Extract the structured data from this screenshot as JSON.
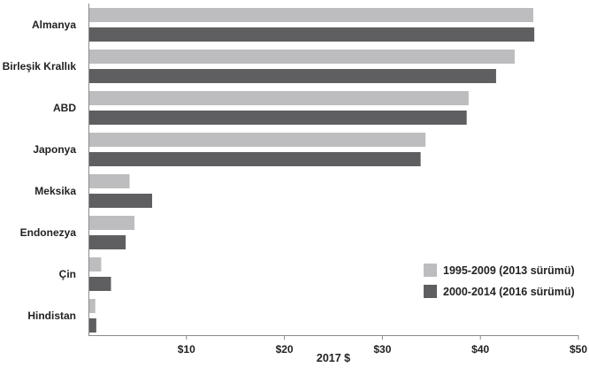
{
  "chart_data": {
    "type": "bar",
    "orientation": "horizontal",
    "categories": [
      "Almanya",
      "Birleşik Krallık",
      "ABD",
      "Japonya",
      "Meksika",
      "Endonezya",
      "Çin",
      "Hindistan"
    ],
    "series": [
      {
        "name": "1995-2009 (2013 sürümü)",
        "color": "#bdbdbf",
        "values": [
          45.4,
          43.5,
          38.8,
          34.4,
          4.2,
          4.7,
          1.3,
          0.7
        ]
      },
      {
        "name": "2000-2014 (2016 sürümü)",
        "color": "#5f5f61",
        "values": [
          45.5,
          41.6,
          38.6,
          33.9,
          6.5,
          3.8,
          2.3,
          0.8
        ]
      }
    ],
    "xlabel": "2017 $",
    "xlim": [
      0,
      50
    ],
    "xticks": [
      10,
      20,
      30,
      40,
      50
    ],
    "xtick_labels": [
      "$10",
      "$20",
      "$30",
      "$40",
      "$50"
    ],
    "grid": false,
    "legend_position": "bottom-right"
  }
}
